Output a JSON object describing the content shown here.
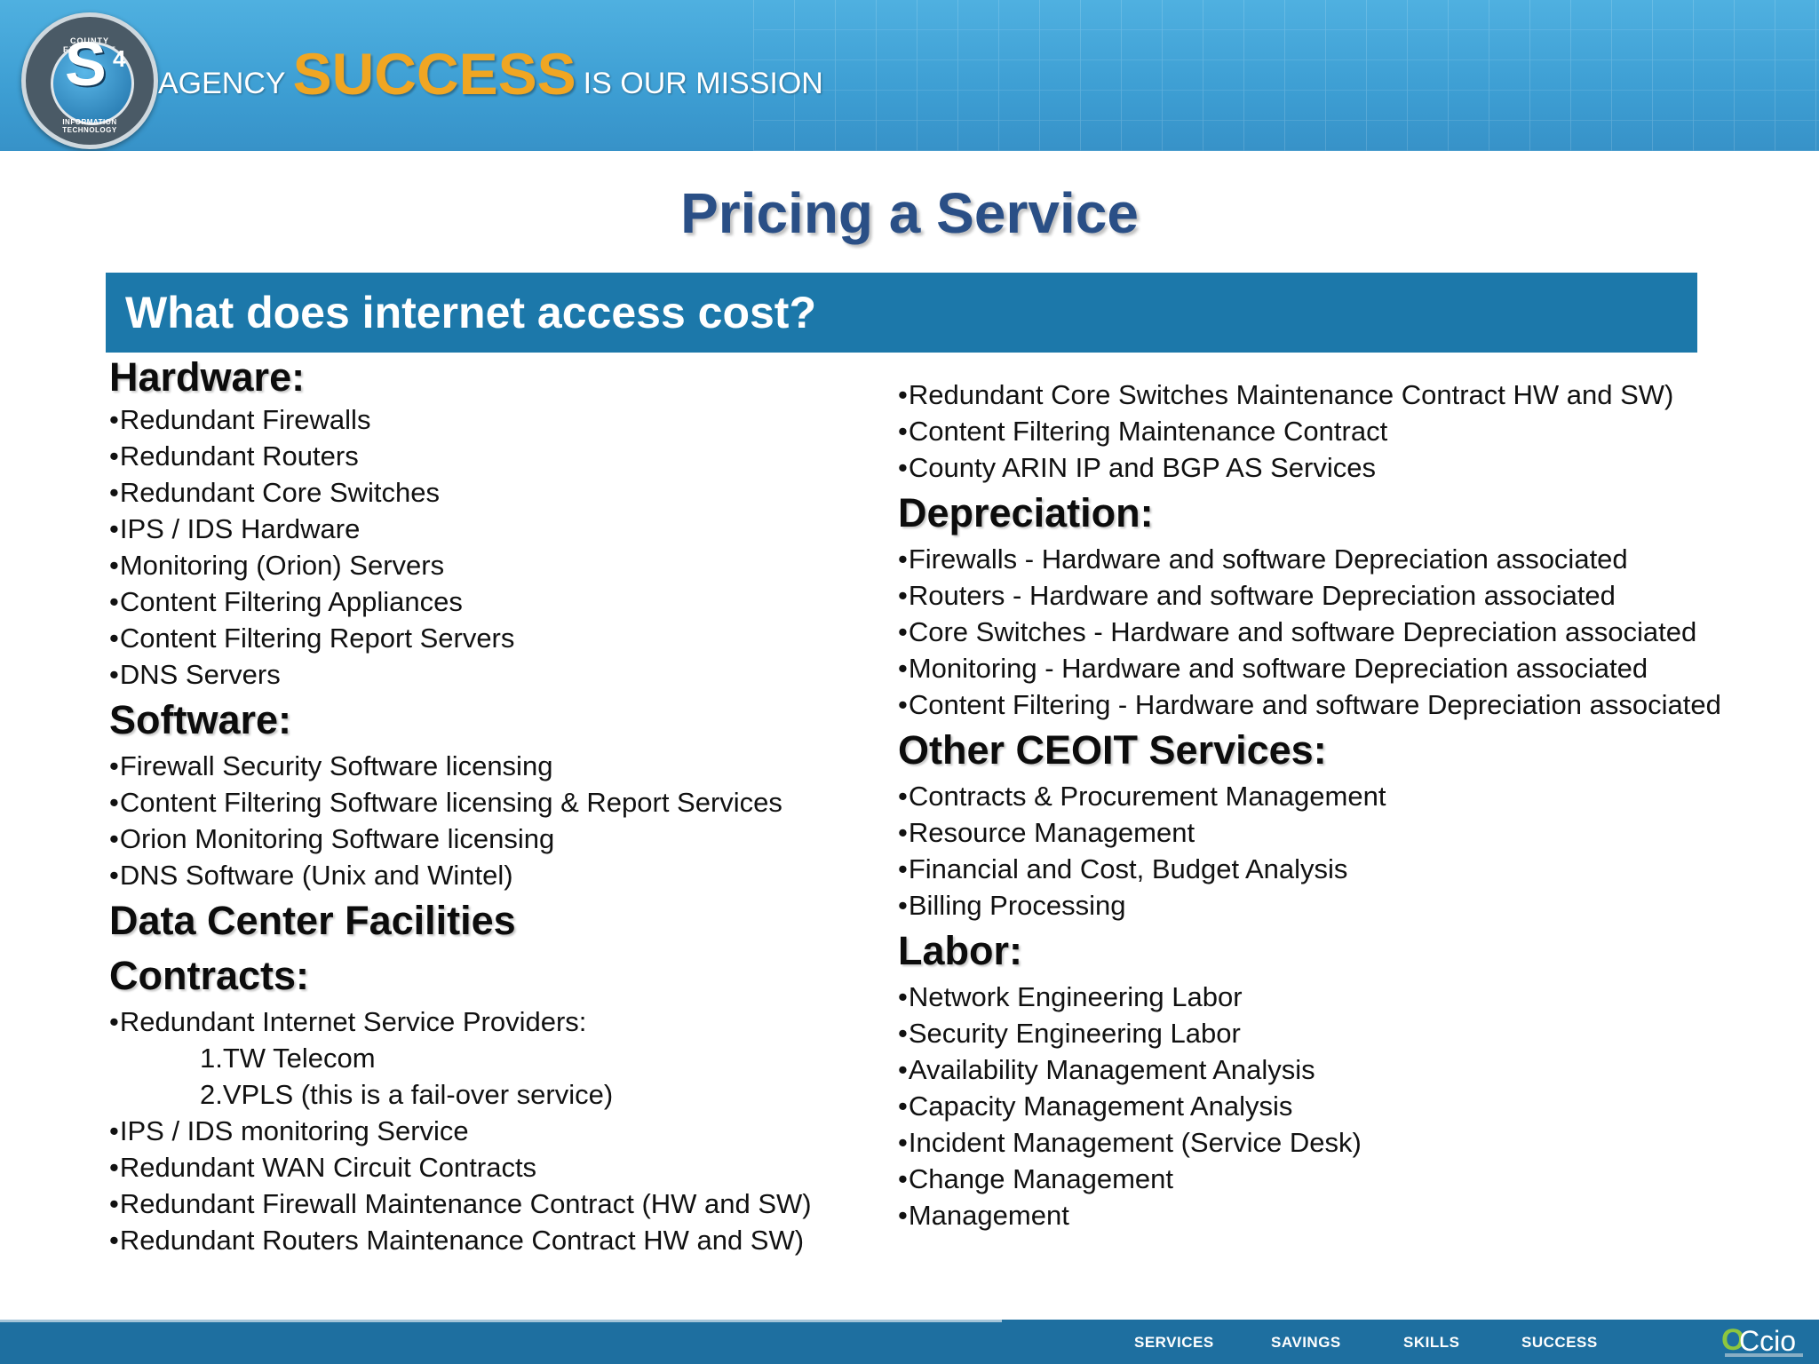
{
  "header": {
    "seal": {
      "ring_top": "COUNTY EXECUTIVE OFFICE",
      "ring_bottom": "INFORMATION TECHNOLOGY",
      "letter": "S",
      "superscript": "4"
    },
    "tagline": {
      "prefix": "AGENCY",
      "emphasis": "SUCCESS",
      "suffix": "IS OUR MISSION"
    }
  },
  "slide": {
    "title": "Pricing a Service",
    "section_heading": "What does internet access cost?"
  },
  "left_column": {
    "hardware": {
      "heading": "Hardware:",
      "items": [
        "Redundant Firewalls",
        "Redundant Routers",
        "Redundant Core Switches",
        "IPS / IDS  Hardware",
        "Monitoring (Orion) Servers",
        "Content Filtering  Appliances",
        "Content Filtering  Report Servers",
        "DNS Servers"
      ]
    },
    "software": {
      "heading": "Software:",
      "items": [
        "Firewall Security Software licensing",
        "Content Filtering  Software licensing & Report Services",
        "Orion Monitoring Software licensing",
        "DNS Software (Unix and Wintel)"
      ]
    },
    "facilities": {
      "heading": "Data Center Facilities"
    },
    "contracts": {
      "heading": "Contracts:",
      "items": [
        "Redundant Internet Service Providers:"
      ],
      "sub_items": [
        "1.TW Telecom",
        "2.VPLS (this is a fail-over service)"
      ],
      "more_items": [
        "IPS / IDS monitoring Service",
        "Redundant WAN Circuit Contracts",
        "Redundant Firewall Maintenance Contract (HW and SW)",
        "Redundant Routers Maintenance Contract HW and SW)"
      ]
    }
  },
  "right_column": {
    "contracts_cont": {
      "items": [
        "Redundant Core Switches Maintenance Contract HW and SW)",
        "Content Filtering Maintenance Contract",
        "County ARIN IP and BGP AS Services"
      ]
    },
    "depreciation": {
      "heading": "Depreciation:",
      "items": [
        "Firewalls - Hardware and software Depreciation associated",
        "Routers - Hardware and software Depreciation associated",
        "Core Switches - Hardware and software Depreciation associated",
        "Monitoring - Hardware and software Depreciation associated",
        "Content Filtering - Hardware and software Depreciation associated"
      ]
    },
    "other_services": {
      "heading": "Other CEOIT Services:",
      "items": [
        "Contracts & Procurement Management",
        "Resource Management",
        "Financial and Cost, Budget Analysis",
        "Billing Processing"
      ]
    },
    "labor": {
      "heading": "Labor:",
      "items": [
        "Network Engineering Labor",
        "Security Engineering Labor",
        "Availability Management Analysis",
        "Capacity Management Analysis",
        "Incident Management (Service Desk)",
        "Change Management",
        "Management"
      ]
    }
  },
  "footer": {
    "nav": [
      "SERVICES",
      "SAVINGS",
      "SKILLS",
      "SUCCESS"
    ],
    "logo": {
      "first": "O",
      "rest": "Ccio"
    }
  },
  "colors": {
    "banner": "#3d9ed3",
    "title": "#2a4f86",
    "section_bar": "#1c78aa",
    "tagline_emphasis": "#f0a623",
    "footer": "#1e6fa0"
  },
  "bullet": "•"
}
